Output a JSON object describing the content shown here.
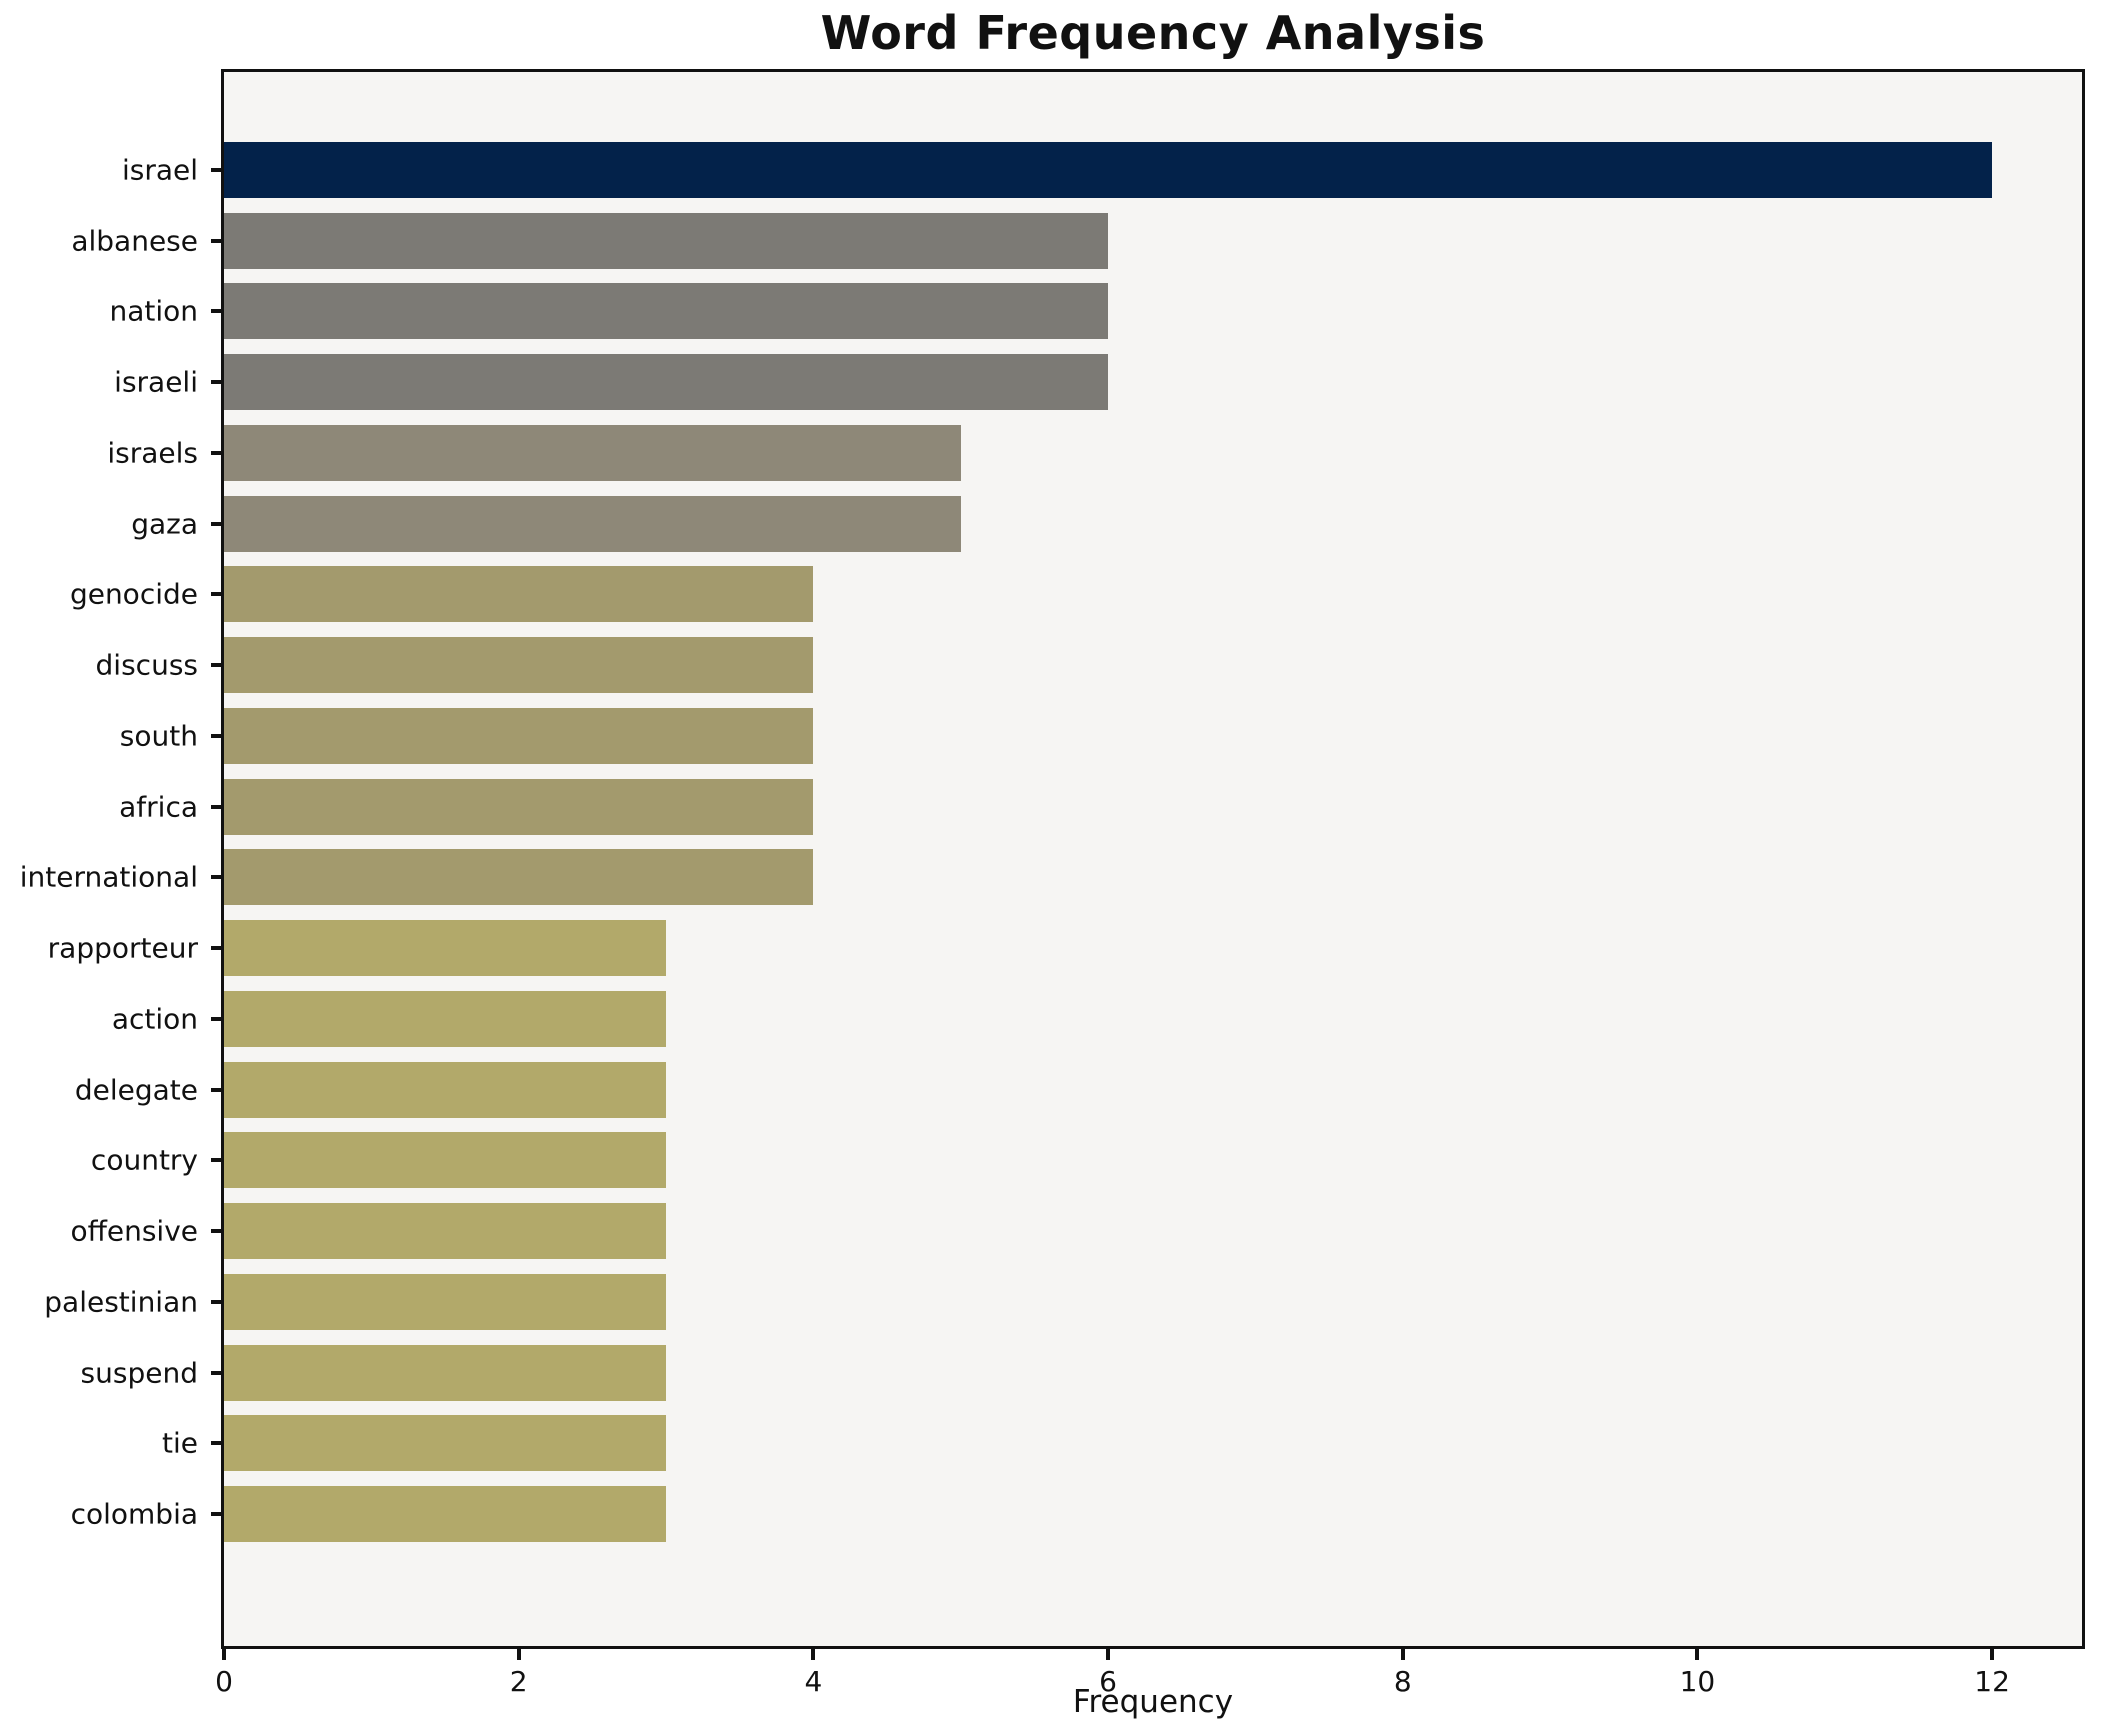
{
  "title": "Word Frequency Analysis",
  "chart_data": {
    "type": "bar",
    "orientation": "horizontal",
    "title": "Word Frequency Analysis",
    "xlabel": "Frequency",
    "ylabel": "",
    "categories": [
      "israel",
      "albanese",
      "nation",
      "israeli",
      "israels",
      "gaza",
      "genocide",
      "discuss",
      "south",
      "africa",
      "international",
      "rapporteur",
      "action",
      "delegate",
      "country",
      "offensive",
      "palestinian",
      "suspend",
      "tie",
      "colombia"
    ],
    "values": [
      12,
      6,
      6,
      6,
      5,
      5,
      4,
      4,
      4,
      4,
      4,
      3,
      3,
      3,
      3,
      3,
      3,
      3,
      3,
      3
    ],
    "bar_colors": [
      "#03224a",
      "#7c7a75",
      "#7c7a75",
      "#7c7a75",
      "#8e8878",
      "#8e8878",
      "#a39a6d",
      "#a39a6d",
      "#a39a6d",
      "#a39a6d",
      "#a39a6d",
      "#b2a96a",
      "#b2a96a",
      "#b2a96a",
      "#b2a96a",
      "#b2a96a",
      "#b2a96a",
      "#b2a96a",
      "#b2a96a",
      "#b2a96a"
    ],
    "xlim": [
      0,
      12.61
    ],
    "x_ticks": [
      0,
      2,
      4,
      6,
      8,
      10,
      12
    ],
    "x_tick_labels": [
      "0",
      "2",
      "4",
      "6",
      "8",
      "10",
      "12"
    ],
    "grid": false,
    "legend": null,
    "plot_background": "#f6f5f3",
    "figure_background": "#ffffff",
    "axis_color": "#111111"
  }
}
